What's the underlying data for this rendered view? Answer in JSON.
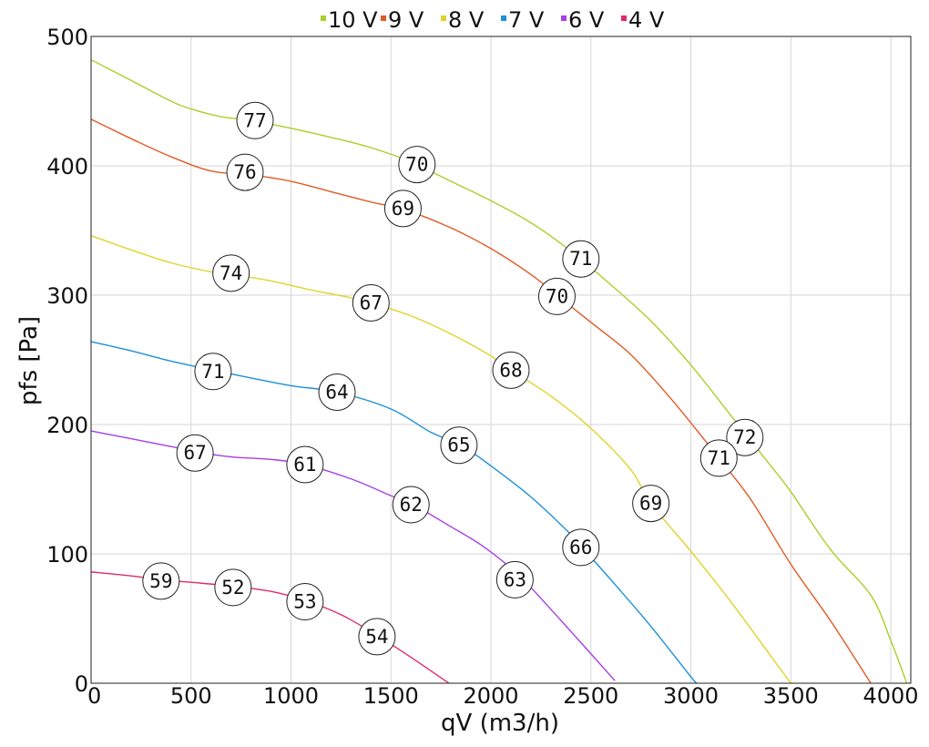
{
  "chart_data": {
    "type": "line",
    "xlabel": "qV (m3/h)",
    "ylabel": "pfs [Pa]",
    "xlim": [
      0,
      4100
    ],
    "ylim": [
      0,
      500
    ],
    "x_ticks": [
      "0",
      "500",
      "1000",
      "1500",
      "2000",
      "2500",
      "3000",
      "3500",
      "4000"
    ],
    "y_ticks": [
      "0",
      "100",
      "200",
      "300",
      "400",
      "500"
    ],
    "grid": true,
    "legend_position": "top-center",
    "series": [
      {
        "name": "10 V",
        "color": "#a8d02a",
        "points": [
          [
            0,
            482
          ],
          [
            200,
            466
          ],
          [
            400,
            450
          ],
          [
            500,
            444
          ],
          [
            650,
            438
          ],
          [
            800,
            435
          ],
          [
            1000,
            429
          ],
          [
            1200,
            422
          ],
          [
            1400,
            414
          ],
          [
            1600,
            403
          ],
          [
            1800,
            388
          ],
          [
            2000,
            373
          ],
          [
            2200,
            356
          ],
          [
            2400,
            334
          ],
          [
            2600,
            308
          ],
          [
            2800,
            280
          ],
          [
            3000,
            246
          ],
          [
            3200,
            207
          ],
          [
            3400,
            168
          ],
          [
            3500,
            148
          ],
          [
            3700,
            103
          ],
          [
            3900,
            68
          ],
          [
            4000,
            33
          ],
          [
            4080,
            0
          ]
        ],
        "markers": [
          {
            "x": 820,
            "y": 435,
            "label": "77"
          },
          {
            "x": 1630,
            "y": 401,
            "label": "70"
          },
          {
            "x": 2450,
            "y": 328,
            "label": "71"
          },
          {
            "x": 3270,
            "y": 190,
            "label": "72"
          }
        ]
      },
      {
        "name": "9 V",
        "color": "#e05a25",
        "points": [
          [
            0,
            436
          ],
          [
            200,
            421
          ],
          [
            400,
            407
          ],
          [
            600,
            396
          ],
          [
            800,
            393
          ],
          [
            1000,
            388
          ],
          [
            1200,
            380
          ],
          [
            1400,
            372
          ],
          [
            1570,
            366
          ],
          [
            1800,
            352
          ],
          [
            2000,
            336
          ],
          [
            2200,
            316
          ],
          [
            2330,
            300
          ],
          [
            2500,
            279
          ],
          [
            2700,
            254
          ],
          [
            2900,
            220
          ],
          [
            3100,
            182
          ],
          [
            3140,
            174
          ],
          [
            3300,
            142
          ],
          [
            3500,
            92
          ],
          [
            3700,
            48
          ],
          [
            3900,
            0
          ]
        ],
        "markers": [
          {
            "x": 770,
            "y": 395,
            "label": "76"
          },
          {
            "x": 1560,
            "y": 367,
            "label": "69"
          },
          {
            "x": 2330,
            "y": 299,
            "label": "70"
          },
          {
            "x": 3140,
            "y": 174,
            "label": "71"
          }
        ]
      },
      {
        "name": "8 V",
        "color": "#e0d42a",
        "points": [
          [
            0,
            346
          ],
          [
            200,
            335
          ],
          [
            400,
            325
          ],
          [
            600,
            318
          ],
          [
            700,
            316
          ],
          [
            900,
            311
          ],
          [
            1100,
            304
          ],
          [
            1300,
            298
          ],
          [
            1400,
            294
          ],
          [
            1600,
            284
          ],
          [
            1800,
            270
          ],
          [
            2000,
            253
          ],
          [
            2100,
            242
          ],
          [
            2300,
            222
          ],
          [
            2500,
            197
          ],
          [
            2700,
            165
          ],
          [
            2800,
            139
          ],
          [
            3000,
            102
          ],
          [
            3200,
            63
          ],
          [
            3400,
            21
          ],
          [
            3500,
            0
          ]
        ],
        "markers": [
          {
            "x": 700,
            "y": 317,
            "label": "74"
          },
          {
            "x": 1400,
            "y": 294,
            "label": "67"
          },
          {
            "x": 2100,
            "y": 242,
            "label": "68"
          },
          {
            "x": 2800,
            "y": 139,
            "label": "69"
          }
        ]
      },
      {
        "name": "7 V",
        "color": "#1e90d8",
        "points": [
          [
            0,
            264
          ],
          [
            200,
            257
          ],
          [
            400,
            249
          ],
          [
            610,
            242
          ],
          [
            800,
            236
          ],
          [
            1000,
            230
          ],
          [
            1230,
            225
          ],
          [
            1500,
            212
          ],
          [
            1700,
            194
          ],
          [
            1850,
            184
          ],
          [
            2000,
            168
          ],
          [
            2200,
            144
          ],
          [
            2400,
            115
          ],
          [
            2450,
            106
          ],
          [
            2600,
            80
          ],
          [
            2800,
            44
          ],
          [
            3000,
            5
          ],
          [
            3030,
            0
          ]
        ],
        "markers": [
          {
            "x": 610,
            "y": 241,
            "label": "71"
          },
          {
            "x": 1230,
            "y": 225,
            "label": "64"
          },
          {
            "x": 1840,
            "y": 184,
            "label": "65"
          },
          {
            "x": 2450,
            "y": 105,
            "label": "66"
          }
        ]
      },
      {
        "name": "6 V",
        "color": "#a63ee8",
        "points": [
          [
            0,
            195
          ],
          [
            200,
            189
          ],
          [
            400,
            183
          ],
          [
            520,
            179
          ],
          [
            700,
            175
          ],
          [
            900,
            173
          ],
          [
            1070,
            169
          ],
          [
            1300,
            158
          ],
          [
            1500,
            145
          ],
          [
            1600,
            139
          ],
          [
            1800,
            121
          ],
          [
            1950,
            107
          ],
          [
            2100,
            89
          ],
          [
            2200,
            74
          ],
          [
            2400,
            40
          ],
          [
            2620,
            2
          ]
        ],
        "markers": [
          {
            "x": 520,
            "y": 178,
            "label": "67"
          },
          {
            "x": 1070,
            "y": 169,
            "label": "61"
          },
          {
            "x": 1600,
            "y": 138,
            "label": "62"
          },
          {
            "x": 2120,
            "y": 80,
            "label": "63"
          }
        ]
      },
      {
        "name": "4 V",
        "color": "#e02a6a",
        "points": [
          [
            0,
            86
          ],
          [
            200,
            83
          ],
          [
            350,
            80
          ],
          [
            500,
            78
          ],
          [
            710,
            75
          ],
          [
            900,
            71
          ],
          [
            1070,
            64
          ],
          [
            1250,
            53
          ],
          [
            1430,
            37
          ],
          [
            1600,
            20
          ],
          [
            1790,
            0
          ]
        ],
        "markers": [
          {
            "x": 350,
            "y": 79,
            "label": "59"
          },
          {
            "x": 710,
            "y": 74,
            "label": "52"
          },
          {
            "x": 1070,
            "y": 63,
            "label": "53"
          },
          {
            "x": 1430,
            "y": 36,
            "label": "54"
          }
        ]
      }
    ]
  }
}
